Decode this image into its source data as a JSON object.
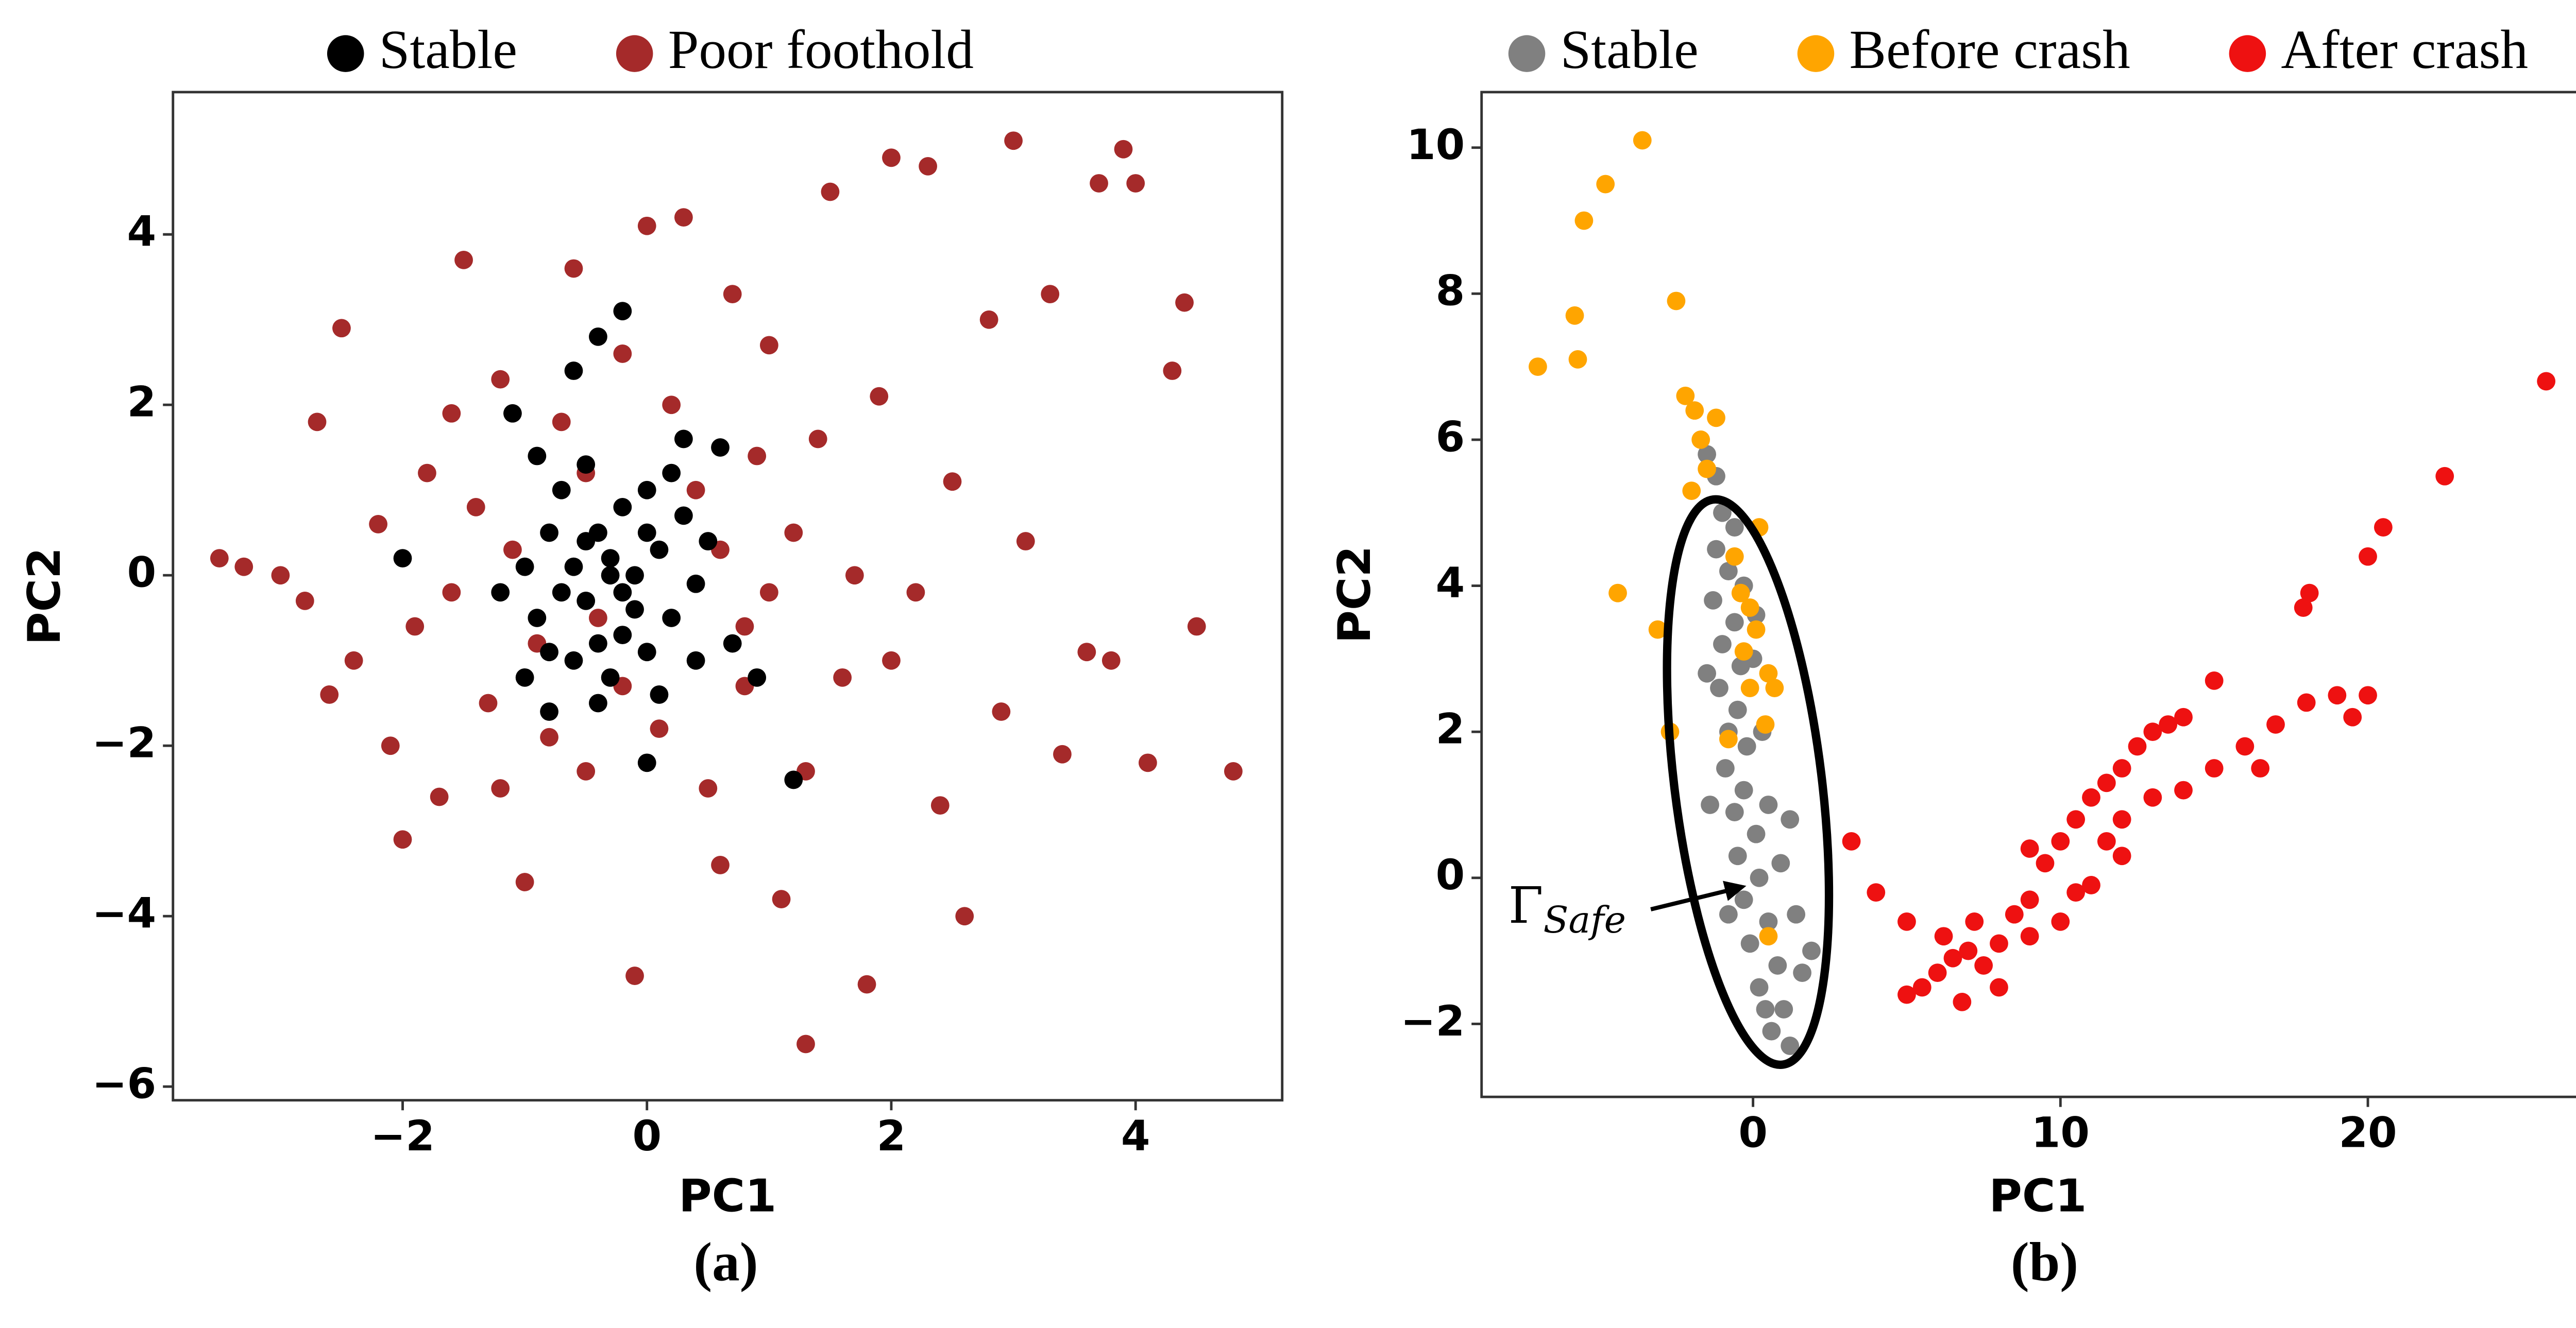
{
  "chart_data": [
    {
      "type": "scatter",
      "caption": "(a)",
      "xlabel": "PC1",
      "ylabel": "PC2",
      "xlim": [
        -3.88,
        5.2
      ],
      "ylim": [
        -6.16,
        5.67
      ],
      "xticks": [
        {
          "value": -2,
          "label": "−2"
        },
        0,
        2,
        4
      ],
      "yticks": [
        {
          "value": -6,
          "label": "−6"
        },
        {
          "value": -4,
          "label": "−4"
        },
        {
          "value": -2,
          "label": "−2"
        },
        0,
        2,
        4
      ],
      "series": [
        {
          "name": "Poor foothold",
          "color": "#a52a2a",
          "x": [
            -3.5,
            -3.3,
            -3,
            -2.8,
            -2.5,
            -2.7,
            -2.4,
            -2.1,
            -2.0,
            -1.8,
            -1.7,
            -1.5,
            -1.4,
            -1.3,
            -1.2,
            -1.0,
            -1.1,
            -0.9,
            -0.7,
            -0.6,
            -0.5,
            -0.4,
            -0.2,
            -0.1,
            0.0,
            0.1,
            0.3,
            0.4,
            0.5,
            0.6,
            0.7,
            0.8,
            1.0,
            1.1,
            1.2,
            1.3,
            1.4,
            1.5,
            1.6,
            1.8,
            1.9,
            2.0,
            2.2,
            2.3,
            2.4,
            2.5,
            2.6,
            2.8,
            2.9,
            3.0,
            3.1,
            3.3,
            3.4,
            3.6,
            3.7,
            3.8,
            3.9,
            4.0,
            4.1,
            4.3,
            4.4,
            4.5,
            4.8,
            -2.2,
            -1.9,
            -1.6,
            -1.2,
            -0.8,
            0.2,
            0.9,
            1.3,
            1.7,
            -0.5,
            0.6,
            -1.6,
            0.8,
            -0.2,
            -2.6,
            2.0,
            1.0
          ],
          "values": [
            0.2,
            0.1,
            0.0,
            -0.3,
            2.9,
            1.8,
            -1.0,
            -2.0,
            -3.1,
            1.2,
            -2.6,
            3.7,
            0.8,
            -1.5,
            2.3,
            -3.6,
            0.3,
            -0.8,
            1.8,
            3.6,
            -2.3,
            -0.5,
            2.6,
            -4.7,
            4.1,
            -1.8,
            4.2,
            1.0,
            -2.5,
            -3.4,
            3.3,
            -0.6,
            2.7,
            -3.8,
            0.5,
            -5.5,
            1.6,
            4.5,
            -1.2,
            -4.8,
            2.1,
            4.9,
            -0.2,
            4.8,
            -2.7,
            1.1,
            -4.0,
            3.0,
            -1.6,
            5.1,
            0.4,
            3.3,
            -2.1,
            -0.9,
            4.6,
            -1.0,
            5.0,
            4.6,
            -2.2,
            2.4,
            3.2,
            -0.6,
            -2.3,
            0.6,
            -0.6,
            1.9,
            -2.5,
            -1.9,
            2.0,
            1.4,
            -2.3,
            0.0,
            1.2,
            0.3,
            -0.2,
            -1.3,
            -1.3,
            -1.4,
            -1.0,
            -0.2
          ]
        },
        {
          "name": "Stable",
          "color": "#000000",
          "x": [
            -0.3,
            -0.5,
            -0.1,
            -0.7,
            0.1,
            -0.4,
            -0.2,
            -0.8,
            0.2,
            -0.6,
            0.0,
            -0.9,
            0.3,
            -0.3,
            -0.5,
            0.4,
            -1.0,
            -0.1,
            -0.6,
            0.0,
            -0.4,
            -0.2,
            -0.8,
            0.5,
            -0.7,
            0.2,
            -0.4,
            0.1,
            -1.1,
            -0.6,
            -0.4,
            -0.2,
            -1.2,
            -2.0,
            0.9,
            1.2,
            0.0,
            -0.8,
            0.6,
            0.3,
            -0.9,
            -0.3,
            -0.5,
            0.0,
            -0.2,
            0.7,
            -1.0,
            0.4
          ],
          "values": [
            0,
            0.4,
            -0.4,
            -0.2,
            0.3,
            -0.8,
            0.8,
            0.5,
            -0.5,
            -1.0,
            1.0,
            -0.5,
            0.7,
            -1.2,
            1.3,
            -0.1,
            0.1,
            0.0,
            0.1,
            -0.9,
            0.5,
            -0.2,
            -0.9,
            0.4,
            1.0,
            1.2,
            -1.5,
            -1.4,
            1.9,
            2.4,
            2.8,
            3.1,
            -0.2,
            0.2,
            -1.2,
            -2.4,
            -2.2,
            -1.6,
            1.5,
            1.6,
            1.4,
            0.2,
            -0.3,
            0.5,
            -0.7,
            -0.8,
            -1.2,
            -1.0
          ]
        }
      ]
    },
    {
      "type": "scatter",
      "caption": "(b)",
      "xlabel": "PC1",
      "ylabel": "PC2",
      "annotation": {
        "symbol": "Γ",
        "subscript": "Safe"
      },
      "xlim": [
        -8.83,
        27.36
      ],
      "ylim": [
        -3.0,
        10.76
      ],
      "xticks": [
        0,
        10,
        20
      ],
      "yticks": [
        {
          "value": -2,
          "label": "−2"
        },
        0,
        2,
        4,
        6,
        8,
        10
      ],
      "series": [
        {
          "name": "Stable",
          "color": "#808080",
          "x": [
            -1.5,
            -1.2,
            -1.0,
            -1.2,
            -0.8,
            -1.3,
            -0.6,
            -1.0,
            -0.4,
            -1.1,
            -0.5,
            -0.8,
            -0.2,
            -0.9,
            -0.3,
            -0.6,
            0.1,
            -0.5,
            0.2,
            -0.3,
            0.5,
            -0.1,
            0.8,
            0.2,
            1.0,
            0.6,
            1.2,
            1.6,
            1.4,
            0.9,
            0.5,
            0.3,
            0.0,
            -0.3,
            -0.6,
            1.2,
            -1.5,
            -1.4,
            0.4,
            1.9,
            0.1,
            -0.8
          ],
          "values": [
            5.8,
            5.5,
            5.0,
            4.5,
            4.2,
            3.8,
            3.5,
            3.2,
            2.9,
            2.6,
            2.3,
            2.0,
            1.8,
            1.5,
            1.2,
            0.9,
            0.6,
            0.3,
            0.0,
            -0.3,
            -0.6,
            -0.9,
            -1.2,
            -1.5,
            -1.8,
            -2.1,
            -2.3,
            -1.3,
            -0.5,
            0.2,
            1.0,
            2.0,
            3.0,
            4.0,
            4.8,
            0.8,
            2.8,
            1.0,
            -1.8,
            -1.0,
            3.6,
            -0.5
          ]
        },
        {
          "name": "Before crash",
          "color": "#ffa500",
          "x": [
            -7,
            -5.7,
            -5.8,
            -5.5,
            -4.8,
            -3.6,
            -2.5,
            -2.2,
            -1.9,
            -1.7,
            -1.5,
            -2.0,
            -1.2,
            -4.4,
            -3.1,
            -2.7,
            -0.6,
            -0.4,
            0.1,
            -0.3,
            0.5,
            -0.1,
            0.4,
            -0.8,
            0.7,
            0.5,
            0.2,
            -0.1
          ],
          "values": [
            7.0,
            7.1,
            7.7,
            9.0,
            9.5,
            10.1,
            7.9,
            6.6,
            6.4,
            6.0,
            5.6,
            5.3,
            6.3,
            3.9,
            3.4,
            2.0,
            4.4,
            3.9,
            3.4,
            3.1,
            2.8,
            2.6,
            2.1,
            1.9,
            2.6,
            -0.8,
            4.8,
            3.7
          ]
        },
        {
          "name": "After crash",
          "color": "#ee1111",
          "x": [
            3.2,
            4.0,
            5.0,
            5.0,
            5.5,
            6.0,
            6.5,
            7.0,
            7.5,
            8.0,
            6.2,
            7.2,
            8.5,
            9.0,
            9.5,
            10.0,
            10.5,
            11.0,
            11.5,
            12.0,
            12.5,
            13.0,
            13.5,
            14.0,
            15.0,
            17.9,
            18.1,
            9.0,
            10.5,
            11.5,
            12.0,
            13.0,
            14.0,
            15.0,
            16.0,
            17.0,
            18.0,
            19.0,
            20.0,
            16.5,
            19.5,
            20.5,
            20.0,
            22.5,
            25.8,
            8.0,
            6.8,
            9.0,
            10.0,
            11.0,
            12.0
          ],
          "values": [
            0.5,
            -0.2,
            -0.6,
            -1.6,
            -1.5,
            -1.3,
            -1.1,
            -1.0,
            -1.2,
            -0.9,
            -0.8,
            -0.6,
            -0.5,
            -0.3,
            0.2,
            0.5,
            0.8,
            1.1,
            1.3,
            1.5,
            1.8,
            2.0,
            2.1,
            2.2,
            2.7,
            3.7,
            3.9,
            0.4,
            -0.2,
            0.5,
            0.8,
            1.1,
            1.2,
            1.5,
            1.8,
            2.1,
            2.4,
            2.5,
            2.5,
            1.5,
            2.2,
            4.8,
            4.4,
            5.5,
            6.8,
            -1.5,
            -1.7,
            -0.8,
            -0.6,
            -0.1,
            0.3
          ]
        }
      ]
    }
  ]
}
